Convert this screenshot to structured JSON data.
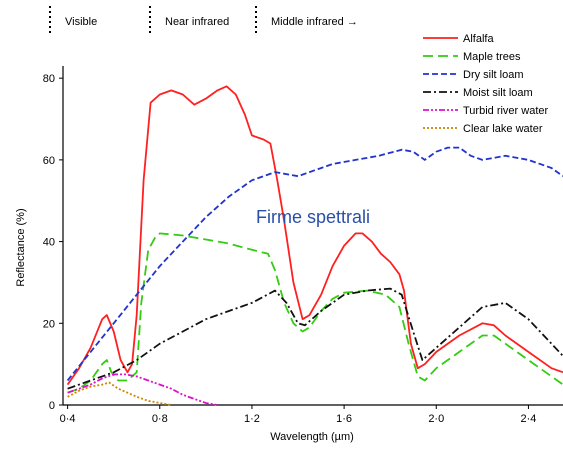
{
  "chart_data": {
    "type": "line",
    "overlay_title": "Firme spettrali",
    "xlabel": "Wavelength  (µm)",
    "ylabel": "Reflectance    (%)",
    "xlim": [
      0.38,
      2.55
    ],
    "ylim": [
      0,
      82
    ],
    "x_ticks": [
      {
        "value": 0.4,
        "label": "0·4"
      },
      {
        "value": 0.8,
        "label": "0·8"
      },
      {
        "value": 1.2,
        "label": "1·2"
      },
      {
        "value": 1.6,
        "label": "1·6"
      },
      {
        "value": 2.0,
        "label": "2·0"
      },
      {
        "value": 2.4,
        "label": "2·4"
      }
    ],
    "y_ticks": [
      {
        "value": 0,
        "label": "0"
      },
      {
        "value": 20,
        "label": "20"
      },
      {
        "value": 40,
        "label": "40"
      },
      {
        "value": 60,
        "label": "60"
      },
      {
        "value": 80,
        "label": "80"
      }
    ],
    "regions": [
      {
        "label": "Visible",
        "start": 0.4,
        "end": 0.7
      },
      {
        "label": "Near infrared",
        "start": 0.7,
        "end": 1.3
      },
      {
        "label": "Middle infrared →",
        "start": 1.3,
        "end": 2.55
      }
    ],
    "legend_position": "top-right",
    "series": [
      {
        "name": "Alfalfa",
        "color": "#ff2020",
        "dash": "solid",
        "points": [
          [
            0.4,
            5
          ],
          [
            0.45,
            9
          ],
          [
            0.5,
            14
          ],
          [
            0.55,
            21
          ],
          [
            0.57,
            22
          ],
          [
            0.6,
            18
          ],
          [
            0.63,
            11
          ],
          [
            0.66,
            8
          ],
          [
            0.68,
            10
          ],
          [
            0.7,
            22
          ],
          [
            0.73,
            55
          ],
          [
            0.76,
            74
          ],
          [
            0.8,
            76
          ],
          [
            0.85,
            77
          ],
          [
            0.9,
            76
          ],
          [
            0.95,
            73.5
          ],
          [
            1.0,
            75
          ],
          [
            1.05,
            77
          ],
          [
            1.09,
            78
          ],
          [
            1.13,
            76
          ],
          [
            1.17,
            71
          ],
          [
            1.2,
            66
          ],
          [
            1.25,
            65
          ],
          [
            1.28,
            64
          ],
          [
            1.31,
            55
          ],
          [
            1.34,
            45
          ],
          [
            1.38,
            30
          ],
          [
            1.42,
            21
          ],
          [
            1.45,
            22
          ],
          [
            1.5,
            27
          ],
          [
            1.55,
            34
          ],
          [
            1.6,
            39
          ],
          [
            1.65,
            42
          ],
          [
            1.68,
            42
          ],
          [
            1.72,
            40
          ],
          [
            1.76,
            37
          ],
          [
            1.8,
            35
          ],
          [
            1.84,
            32
          ],
          [
            1.86,
            28
          ],
          [
            1.89,
            15
          ],
          [
            1.92,
            9
          ],
          [
            1.95,
            10
          ],
          [
            2.0,
            13
          ],
          [
            2.1,
            17
          ],
          [
            2.2,
            20
          ],
          [
            2.25,
            19.5
          ],
          [
            2.3,
            17
          ],
          [
            2.4,
            13
          ],
          [
            2.5,
            9
          ],
          [
            2.55,
            8
          ]
        ]
      },
      {
        "name": "Maple trees",
        "color": "#33cc11",
        "dash": "long-dash",
        "points": [
          [
            0.4,
            3
          ],
          [
            0.45,
            4
          ],
          [
            0.5,
            6
          ],
          [
            0.55,
            10
          ],
          [
            0.57,
            11
          ],
          [
            0.59,
            8
          ],
          [
            0.62,
            6
          ],
          [
            0.66,
            6
          ],
          [
            0.7,
            8
          ],
          [
            0.72,
            25
          ],
          [
            0.75,
            38
          ],
          [
            0.78,
            41
          ],
          [
            0.8,
            42
          ],
          [
            0.9,
            41.5
          ],
          [
            1.0,
            40.5
          ],
          [
            1.1,
            39.5
          ],
          [
            1.2,
            38
          ],
          [
            1.27,
            37
          ],
          [
            1.3,
            33
          ],
          [
            1.34,
            25
          ],
          [
            1.38,
            20
          ],
          [
            1.42,
            18
          ],
          [
            1.45,
            19
          ],
          [
            1.5,
            23
          ],
          [
            1.55,
            26
          ],
          [
            1.6,
            27.5
          ],
          [
            1.7,
            28
          ],
          [
            1.78,
            27
          ],
          [
            1.84,
            24
          ],
          [
            1.88,
            15
          ],
          [
            1.92,
            7
          ],
          [
            1.95,
            6
          ],
          [
            2.0,
            9
          ],
          [
            2.1,
            13
          ],
          [
            2.2,
            17
          ],
          [
            2.25,
            17
          ],
          [
            2.3,
            15
          ],
          [
            2.4,
            11
          ],
          [
            2.5,
            7
          ],
          [
            2.55,
            5
          ]
        ]
      },
      {
        "name": "Dry silt loam",
        "color": "#2233cc",
        "dash": "dash",
        "points": [
          [
            0.4,
            6
          ],
          [
            0.5,
            13
          ],
          [
            0.6,
            20
          ],
          [
            0.7,
            27
          ],
          [
            0.8,
            34
          ],
          [
            0.9,
            40
          ],
          [
            1.0,
            46
          ],
          [
            1.1,
            51
          ],
          [
            1.2,
            55
          ],
          [
            1.3,
            57
          ],
          [
            1.4,
            56
          ],
          [
            1.45,
            57
          ],
          [
            1.55,
            59
          ],
          [
            1.65,
            60
          ],
          [
            1.75,
            61
          ],
          [
            1.85,
            62.5
          ],
          [
            1.9,
            62
          ],
          [
            1.95,
            60
          ],
          [
            2.0,
            62
          ],
          [
            2.05,
            63
          ],
          [
            2.1,
            63
          ],
          [
            2.15,
            61
          ],
          [
            2.2,
            60
          ],
          [
            2.3,
            61
          ],
          [
            2.4,
            60
          ],
          [
            2.5,
            58
          ],
          [
            2.55,
            56
          ]
        ]
      },
      {
        "name": "Moist silt loam",
        "color": "#111111",
        "dash": "dash-dot",
        "points": [
          [
            0.4,
            4
          ],
          [
            0.5,
            6
          ],
          [
            0.6,
            8
          ],
          [
            0.7,
            11
          ],
          [
            0.8,
            15
          ],
          [
            0.9,
            18
          ],
          [
            1.0,
            21
          ],
          [
            1.1,
            23
          ],
          [
            1.2,
            25
          ],
          [
            1.3,
            28
          ],
          [
            1.35,
            25
          ],
          [
            1.4,
            20
          ],
          [
            1.43,
            19.5
          ],
          [
            1.5,
            23
          ],
          [
            1.6,
            27
          ],
          [
            1.7,
            28
          ],
          [
            1.8,
            28.5
          ],
          [
            1.85,
            27
          ],
          [
            1.9,
            18
          ],
          [
            1.94,
            11
          ],
          [
            2.0,
            14
          ],
          [
            2.1,
            19
          ],
          [
            2.2,
            24
          ],
          [
            2.3,
            25
          ],
          [
            2.4,
            21
          ],
          [
            2.5,
            15
          ],
          [
            2.55,
            12
          ]
        ]
      },
      {
        "name": "Turbid river water",
        "color": "#dd11cc",
        "dash": "dash-dot-dot",
        "points": [
          [
            0.4,
            3
          ],
          [
            0.45,
            4
          ],
          [
            0.5,
            5
          ],
          [
            0.55,
            6.5
          ],
          [
            0.6,
            7.5
          ],
          [
            0.65,
            7.5
          ],
          [
            0.7,
            7
          ],
          [
            0.75,
            6
          ],
          [
            0.8,
            5
          ],
          [
            0.85,
            4
          ],
          [
            0.9,
            2.5
          ],
          [
            0.95,
            1.5
          ],
          [
            1.0,
            0.5
          ],
          [
            1.05,
            0
          ]
        ]
      },
      {
        "name": "Clear lake water",
        "color": "#cc8800",
        "dash": "dot",
        "points": [
          [
            0.4,
            2
          ],
          [
            0.45,
            3.5
          ],
          [
            0.5,
            4.5
          ],
          [
            0.55,
            5
          ],
          [
            0.58,
            5.5
          ],
          [
            0.62,
            4
          ],
          [
            0.66,
            3
          ],
          [
            0.7,
            2
          ],
          [
            0.75,
            1
          ],
          [
            0.8,
            0.5
          ],
          [
            0.85,
            0
          ]
        ]
      }
    ]
  }
}
